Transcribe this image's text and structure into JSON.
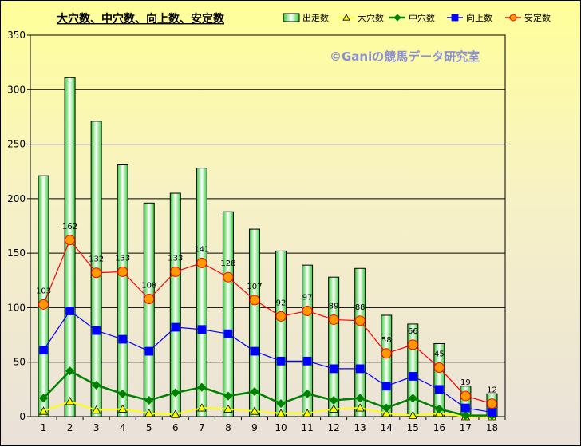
{
  "chart_data": {
    "type": "bar",
    "title": "大穴数、中穴数、向上数、安定数",
    "watermark": "©Ganiの競馬データ研究室",
    "categories": [
      "1",
      "2",
      "3",
      "4",
      "5",
      "6",
      "7",
      "8",
      "9",
      "10",
      "11",
      "12",
      "13",
      "14",
      "15",
      "16",
      "17",
      "18"
    ],
    "ylim": [
      0,
      350
    ],
    "yticks": [
      0,
      50,
      100,
      150,
      200,
      250,
      300,
      350
    ],
    "grid": "horizontal",
    "legend_position": "top-right",
    "series": [
      {
        "name": "出走数",
        "kind": "bar",
        "color": "#33cc33",
        "values": [
          221,
          311,
          271,
          231,
          196,
          205,
          228,
          188,
          172,
          152,
          139,
          128,
          136,
          93,
          85,
          67,
          28,
          21
        ]
      },
      {
        "name": "大穴数",
        "kind": "line",
        "marker": "triangle",
        "color": "#ffff00",
        "values": [
          5,
          14,
          6,
          7,
          3,
          2,
          8,
          7,
          5,
          3,
          3,
          7,
          8,
          3,
          1,
          3,
          0,
          0
        ]
      },
      {
        "name": "中穴数",
        "kind": "line",
        "marker": "diamond",
        "color": "#008000",
        "values": [
          17,
          42,
          29,
          21,
          15,
          22,
          27,
          19,
          23,
          12,
          21,
          15,
          17,
          8,
          17,
          7,
          1,
          1
        ]
      },
      {
        "name": "向上数",
        "kind": "line",
        "marker": "square",
        "color": "#0000ff",
        "values": [
          61,
          97,
          79,
          71,
          60,
          82,
          80,
          76,
          60,
          51,
          51,
          44,
          44,
          28,
          37,
          25,
          8,
          4
        ]
      },
      {
        "name": "安定数",
        "kind": "line",
        "marker": "circle",
        "color": "#ff0000",
        "marker_fill": "#ff9900",
        "values": [
          103,
          162,
          132,
          133,
          108,
          133,
          141,
          128,
          107,
          92,
          97,
          89,
          88,
          58,
          66,
          45,
          19,
          12
        ],
        "data_labels": true
      }
    ]
  }
}
